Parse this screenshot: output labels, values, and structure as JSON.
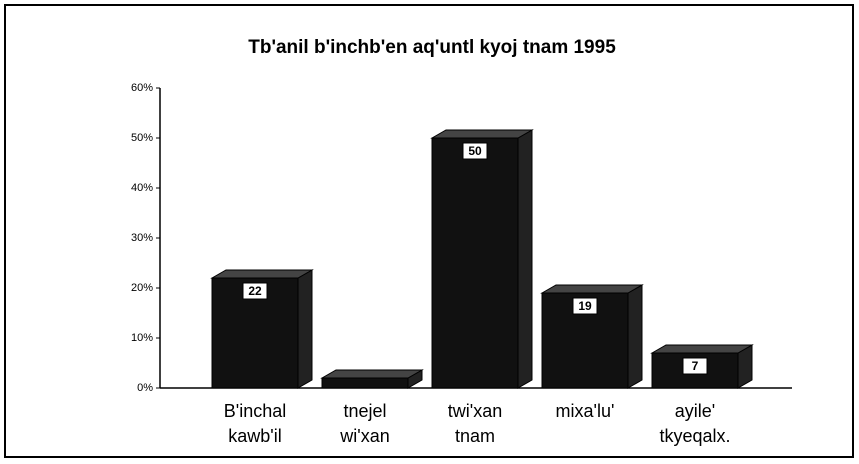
{
  "chart_data": {
    "type": "bar3d",
    "title": "Tb'anil b'inchb'en aq'untl kyoj tnam 1995",
    "categories": [
      [
        "B'inchal",
        "kawb'il"
      ],
      [
        "tnejel",
        "wi'xan"
      ],
      [
        "twi'xan",
        "tnam"
      ],
      [
        "mixa'lu'"
      ],
      [
        "ayile'",
        "tkyeqalx."
      ]
    ],
    "values": [
      22,
      2,
      50,
      19,
      7
    ],
    "value_labels": [
      "22",
      null,
      "50",
      "19",
      "7"
    ],
    "color": "#111111",
    "ylim": [
      0,
      60
    ],
    "yticks": [
      {
        "value": 0,
        "label": "0%"
      },
      {
        "value": 10,
        "label": "10%"
      },
      {
        "value": 20,
        "label": "20%"
      },
      {
        "value": 30,
        "label": "30%"
      },
      {
        "value": 40,
        "label": "40%"
      },
      {
        "value": 50,
        "label": "50%"
      },
      {
        "value": 60,
        "label": "60%"
      }
    ]
  }
}
